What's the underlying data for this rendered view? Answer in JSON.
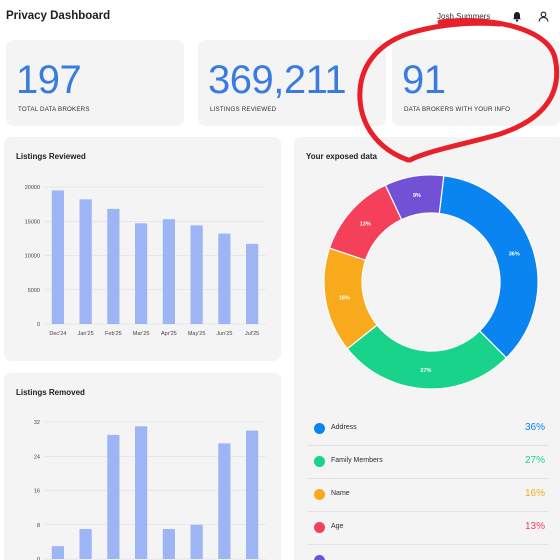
{
  "app": {
    "title": "Privacy Dashboard",
    "user_name": "Josh Summers"
  },
  "stats": [
    {
      "value": "197",
      "label": "TOTAL DATA BROKERS"
    },
    {
      "value": "369,211",
      "label": "LISTINGS REVIEWED"
    },
    {
      "value": "91",
      "label": "DATA BROKERS WITH YOUR INFO"
    }
  ],
  "colors": {
    "accent": "#3a7be0",
    "bar": "#9db5f5",
    "highlight": "#e8202a",
    "address": "#0a84f0",
    "family": "#19d38a",
    "name": "#f8a91c",
    "age": "#f5405a",
    "other": "#7351d4"
  },
  "cards": {
    "listings_reviewed_title": "Listings Reviewed",
    "listings_removed_title": "Listings Removed",
    "exposed_title": "Your exposed data"
  },
  "legend": [
    {
      "label": "Address",
      "value": "36%",
      "color": "#0a84f0"
    },
    {
      "label": "Family Members",
      "value": "27%",
      "color": "#19d38a"
    },
    {
      "label": "Name",
      "value": "16%",
      "color": "#f8a91c"
    },
    {
      "label": "Age",
      "value": "13%",
      "color": "#f5405a"
    },
    {
      "label": "",
      "value": "",
      "color": "#7351d4"
    }
  ],
  "chart_data": [
    {
      "type": "bar",
      "title": "Listings Reviewed",
      "categories": [
        "Dec'24",
        "Jan'25",
        "Feb'25",
        "Mar'25",
        "Apr'25",
        "May'25",
        "Jun'25",
        "Jul'25"
      ],
      "values": [
        19500,
        18200,
        16800,
        14700,
        15300,
        14400,
        13200,
        11700
      ],
      "ylim": [
        0,
        20000
      ],
      "yticks": [
        0,
        5000,
        10000,
        15000,
        20000
      ],
      "grid": true
    },
    {
      "type": "bar",
      "title": "Listings Removed",
      "values": [
        3,
        7,
        29,
        31,
        7,
        8,
        27,
        30
      ],
      "ylim": [
        0,
        32
      ],
      "yticks": [
        0,
        8,
        16,
        24,
        32
      ],
      "grid": true
    },
    {
      "type": "pie",
      "title": "Your exposed data",
      "donut": true,
      "slices": [
        {
          "label": "Address",
          "value": 36,
          "text": "36%",
          "color": "#0a84f0"
        },
        {
          "label": "Family Members",
          "value": 27,
          "text": "27%",
          "color": "#19d38a"
        },
        {
          "label": "Name",
          "value": 16,
          "text": "16%",
          "color": "#f8a91c"
        },
        {
          "label": "Age",
          "value": 13,
          "text": "13%",
          "color": "#f5405a"
        },
        {
          "label": "",
          "value": 9,
          "text": "9%",
          "color": "#7351d4"
        }
      ]
    }
  ]
}
